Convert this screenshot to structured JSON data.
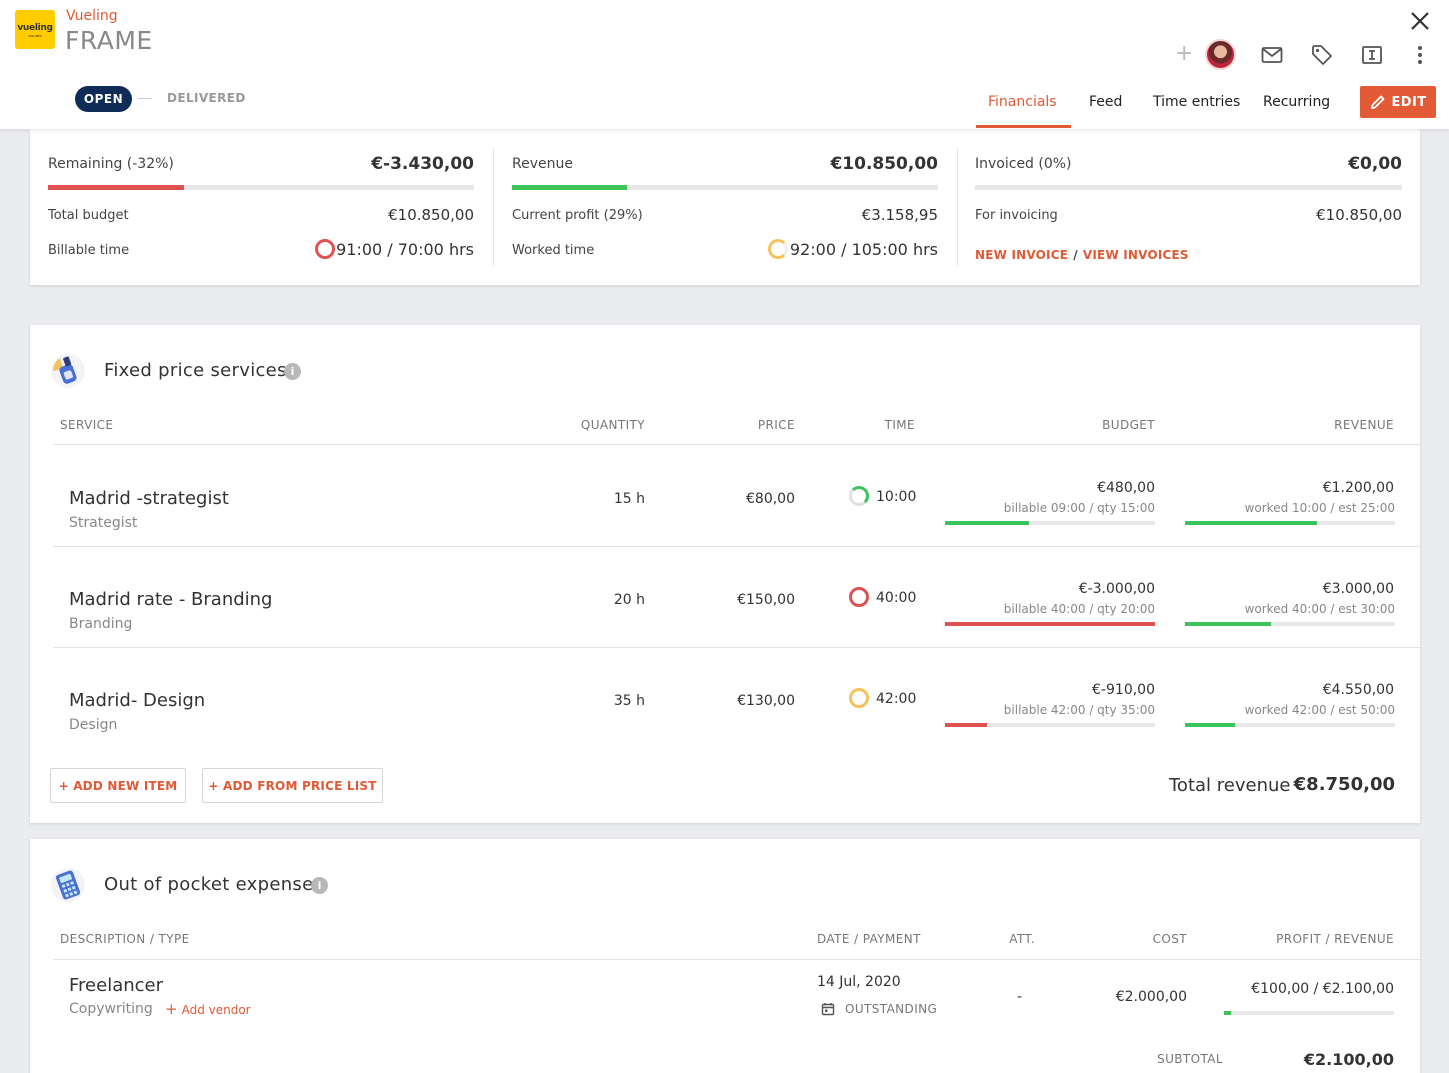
{
  "header": {
    "logo_text": "vueling",
    "logo_sub": "AIRLINES",
    "client": "Vueling",
    "project": "FRAME",
    "status_open": "OPEN",
    "status_delivered": "DELIVERED",
    "plus": "+",
    "tabs": [
      {
        "label": "Financials",
        "active": true
      },
      {
        "label": "Feed",
        "active": false
      },
      {
        "label": "Time entries",
        "active": false
      },
      {
        "label": "Recurring",
        "active": false
      }
    ],
    "edit_label": "EDIT",
    "accent": "#e05a36"
  },
  "summary": {
    "remaining": {
      "label": "Remaining (-32%)",
      "value": "€-3.430,00",
      "bar_fraction": 0.32,
      "bar_color": "#e05252"
    },
    "total_budget": {
      "label": "Total budget",
      "value": "€10.850,00"
    },
    "billable_time": {
      "label": "Billable time",
      "value": "91:00 / 70:00 hrs"
    },
    "revenue": {
      "label": "Revenue",
      "value": "€10.850,00",
      "bar_fraction": 0.27,
      "bar_color": "#3cc35a"
    },
    "current_profit": {
      "label": "Current profit (29%)",
      "value": "€3.158,95"
    },
    "worked_time": {
      "label": "Worked time",
      "value": "92:00 / 105:00 hrs"
    },
    "invoiced": {
      "label": "Invoiced (0%)",
      "value": "€0,00",
      "bar_fraction": 0
    },
    "for_invoicing": {
      "label": "For invoicing",
      "value": "€10.850,00"
    },
    "new_invoice": "NEW INVOICE",
    "separator": "/",
    "view_invoices": "VIEW INVOICES"
  },
  "fixed": {
    "title": "Fixed price services",
    "info": "i",
    "columns": {
      "service": "SERVICE",
      "quantity": "QUANTITY",
      "price": "PRICE",
      "time": "TIME",
      "budget": "BUDGET",
      "revenue": "REVENUE"
    },
    "rows": [
      {
        "name": "Madrid -strategist",
        "type": "Strategist",
        "quantity": "15 h",
        "price": "€80,00",
        "time": "10:00",
        "budget": "€480,00",
        "budget_sub": "billable 09:00 / qty 15:00",
        "budget_fraction": 0.4,
        "budget_color": "#3cc35a",
        "revenue": "€1.200,00",
        "revenue_sub": "worked 10:00 / est 25:00",
        "revenue_fraction": 0.63,
        "revenue_color": "#3cc35a"
      },
      {
        "name": "Madrid rate - Branding",
        "type": "Branding",
        "quantity": "20 h",
        "price": "€150,00",
        "time": "40:00",
        "budget": "€-3.000,00",
        "budget_sub": "billable 40:00 / qty 20:00",
        "budget_fraction": 1.0,
        "budget_color": "#e05252",
        "revenue": "€3.000,00",
        "revenue_sub": "worked 40:00 / est 30:00",
        "revenue_fraction": 0.41,
        "revenue_color": "#3cc35a"
      },
      {
        "name": "Madrid- Design",
        "type": "Design",
        "quantity": "35 h",
        "price": "€130,00",
        "time": "42:00",
        "budget": "€-910,00",
        "budget_sub": "billable 42:00 / qty 35:00",
        "budget_fraction": 0.2,
        "budget_color": "#e05252",
        "revenue": "€4.550,00",
        "revenue_sub": "worked 42:00 / est 50:00",
        "revenue_fraction": 0.24,
        "revenue_color": "#3cc35a"
      }
    ],
    "add_new_item": "+ ADD NEW ITEM",
    "add_from_price_list": "+ ADD FROM PRICE LIST",
    "total_label": "Total revenue",
    "total_value": "€8.750,00"
  },
  "expenses": {
    "title": "Out of pocket expenses",
    "info": "i",
    "columns": {
      "description": "DESCRIPTION / TYPE",
      "date": "DATE / PAYMENT",
      "att": "ATT.",
      "cost": "COST",
      "profit": "PROFIT / REVENUE"
    },
    "rows": [
      {
        "name": "Freelancer",
        "type": "Copywriting",
        "add_vendor": "Add vendor",
        "date": "14 Jul, 2020",
        "payment": "OUTSTANDING",
        "att": "-",
        "cost": "€2.000,00",
        "profit_revenue": "€100,00 / €2.100,00",
        "profit_fraction": 0.04
      }
    ],
    "subtotal_label": "SUBTOTAL",
    "subtotal_value": "€2.100,00"
  }
}
